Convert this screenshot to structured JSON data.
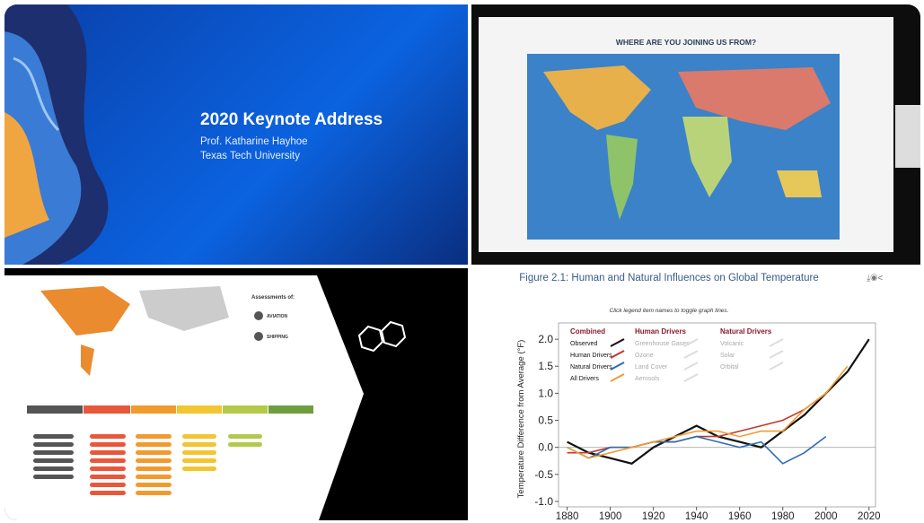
{
  "panels": {
    "keynote": {
      "title": "2020 Keynote Address",
      "speaker": "Prof. Katharine Hayhoe",
      "affiliation": "Texas Tech University"
    },
    "map": {
      "header": "WHERE ARE YOU JOINING US FROM?"
    },
    "assessments": {
      "heading": "Assessments of:",
      "items": [
        "AVIATION",
        "SHIPPING"
      ]
    }
  },
  "chart_data": {
    "type": "line",
    "title": "Figure 2.1: Human and Natural Influences on Global Temperature",
    "subtitle": "Click legend item names to toggle graph lines.",
    "y_label": "Temperature Difference from Average (°F)",
    "combined_label": "Combined",
    "legend_groups": [
      {
        "name": "Human Drivers",
        "items": [
          "Greenhouse Gases",
          "Ozone",
          "Land Cover",
          "Aerosols"
        ]
      },
      {
        "name": "Natural Drivers",
        "items": [
          "Volcanic",
          "Solar",
          "Orbital"
        ]
      }
    ],
    "x": [
      1880,
      1890,
      1900,
      1910,
      1920,
      1930,
      1940,
      1950,
      1960,
      1970,
      1980,
      1990,
      2000,
      2010,
      2020
    ],
    "series": [
      {
        "name": "Observed",
        "color": "#111111",
        "values": [
          0.1,
          -0.1,
          -0.2,
          -0.3,
          0.0,
          0.2,
          0.4,
          0.2,
          0.1,
          0.0,
          0.3,
          0.6,
          1.0,
          1.4,
          2.0
        ]
      },
      {
        "name": "Human Drivers",
        "color": "#c0392b",
        "values": [
          -0.1,
          -0.1,
          0.0,
          0.0,
          0.1,
          0.1,
          0.2,
          0.2,
          0.3,
          0.4,
          0.5,
          0.7,
          1.0,
          null,
          null
        ]
      },
      {
        "name": "Natural Drivers",
        "color": "#2e6db4",
        "values": [
          0.0,
          -0.2,
          0.0,
          0.0,
          0.1,
          0.1,
          0.2,
          0.1,
          0.0,
          0.1,
          -0.3,
          -0.1,
          0.2,
          null,
          null
        ]
      },
      {
        "name": "All Drivers",
        "color": "#f39c32",
        "values": [
          0.0,
          -0.2,
          -0.1,
          0.0,
          0.1,
          0.2,
          0.3,
          0.3,
          0.2,
          0.3,
          0.3,
          0.7,
          1.0,
          1.5,
          null
        ]
      }
    ],
    "xlim": [
      1876,
      2023
    ],
    "ylim": [
      -1.1,
      2.3
    ],
    "xticks": [
      1880,
      1900,
      1920,
      1940,
      1960,
      1980,
      2000,
      2020
    ],
    "yticks": [
      {
        "value": -1.0,
        "label": "-1.0"
      },
      {
        "value": -0.5,
        "label": "-0.5"
      },
      {
        "value": 0.0,
        "label": "0.0"
      },
      {
        "value": 0.5,
        "label": "0.5"
      },
      {
        "value": 1.0,
        "label": "1.0"
      },
      {
        "value": 1.5,
        "label": "1.5"
      },
      {
        "value": 2.0,
        "label": "2.0"
      }
    ],
    "zero_line": true
  }
}
